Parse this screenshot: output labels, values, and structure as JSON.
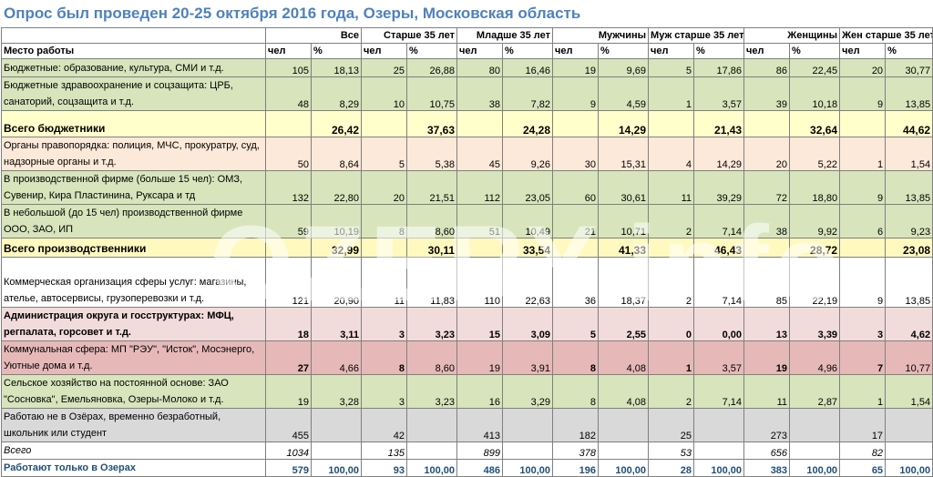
{
  "title": "Опрос был проведен 20-25 октября 2016 года, Озеры, Московская область",
  "watermark": "OZERY.info",
  "header": {
    "place_label": "Место работы",
    "groups": [
      "Все",
      "Старше 35 лет",
      "Младше 35 лет",
      "Мужчины",
      "Муж старше 35 лет",
      "Женщины",
      "Жен старше 35 лет"
    ],
    "unit_count": "чел",
    "unit_pct": "%"
  },
  "rows": [
    {
      "label": "Бюджетные: образование, культура, СМИ и т.д.",
      "v": [
        "105",
        "18,13",
        "25",
        "26,88",
        "80",
        "16,46",
        "19",
        "9,69",
        "5",
        "17,86",
        "86",
        "22,45",
        "20",
        "30,77"
      ]
    },
    {
      "label": "Бюджетные здравоохранение и соцзащита: ЦРБ, санаторий, соцзащита и т.д.",
      "v": [
        "48",
        "8,29",
        "10",
        "10,75",
        "38",
        "7,82",
        "9",
        "4,59",
        "1",
        "3,57",
        "39",
        "10,18",
        "9",
        "13,85"
      ]
    },
    {
      "label": "Всего бюджетники",
      "v": [
        "",
        "26,42",
        "",
        "37,63",
        "",
        "24,28",
        "",
        "14,29",
        "",
        "21,43",
        "",
        "32,64",
        "",
        "44,62"
      ]
    },
    {
      "label": "Органы правопорядка: полиция, МЧС, прокуратру, суд, надзорные органы и т.д.",
      "v": [
        "50",
        "8,64",
        "5",
        "5,38",
        "45",
        "9,26",
        "30",
        "15,31",
        "4",
        "14,29",
        "20",
        "5,22",
        "1",
        "1,54"
      ]
    },
    {
      "label": "В производственной фирме (больше 15 чел): ОМЗ, Сувенир, Кира Пластинина, Руксара и тд",
      "v": [
        "132",
        "22,80",
        "20",
        "21,51",
        "112",
        "23,05",
        "60",
        "30,61",
        "11",
        "39,29",
        "72",
        "18,80",
        "9",
        "13,85"
      ]
    },
    {
      "label": "В небольшой (до 15 чел) производственной фирме ООО, ЗАО, ИП",
      "v": [
        "59",
        "10,19",
        "8",
        "8,60",
        "51",
        "10,49",
        "21",
        "10,71",
        "2",
        "7,14",
        "38",
        "9,92",
        "6",
        "9,23"
      ]
    },
    {
      "label": "Всего производственники",
      "v": [
        "",
        "32,99",
        "",
        "30,11",
        "",
        "33,54",
        "",
        "41,33",
        "",
        "46,43",
        "",
        "28,72",
        "",
        "23,08"
      ]
    },
    {
      "label": "Коммерческая организация сферы услуг: магазины, ателье, автосервисы, грузоперевозки и т.д.",
      "v": [
        "121",
        "20,90",
        "11",
        "11,83",
        "110",
        "22,63",
        "36",
        "18,37",
        "2",
        "7,14",
        "85",
        "22,19",
        "9",
        "13,85"
      ]
    },
    {
      "label": "Администрация округа и госструктурах: МФЦ, регпалата, горсовет и т.д.",
      "v": [
        "18",
        "3,11",
        "3",
        "3,23",
        "15",
        "3,09",
        "5",
        "2,55",
        "0",
        "0,00",
        "13",
        "3,39",
        "3",
        "4,62"
      ]
    },
    {
      "label": "Коммунальная сфера: МП \"РЭУ\", \"Исток\", Мосэнерго, Уютные дома и т.д.",
      "v": [
        "27",
        "4,66",
        "8",
        "8,60",
        "19",
        "3,91",
        "8",
        "4,08",
        "1",
        "3,57",
        "19",
        "4,96",
        "7",
        "10,77"
      ]
    },
    {
      "label": "Сельское хозяйство на постоянной основе: ЗАО \"Сосновка\", Емельяновка, Озеры-Молоко и т.д.",
      "v": [
        "19",
        "3,28",
        "3",
        "3,23",
        "16",
        "3,29",
        "8",
        "4,08",
        "2",
        "7,14",
        "11",
        "2,87",
        "1",
        "1,54"
      ]
    },
    {
      "label": "Работаю не в Озёрах, временно безработный, школьник или студент",
      "v": [
        "455",
        "",
        "42",
        "",
        "413",
        "",
        "182",
        "",
        "25",
        "",
        "273",
        "",
        "17",
        ""
      ]
    },
    {
      "label": "Всего",
      "v": [
        "1034",
        "",
        "135",
        "",
        "899",
        "",
        "378",
        "",
        "53",
        "",
        "656",
        "",
        "82",
        ""
      ]
    },
    {
      "label": "Работают только в Озерах",
      "v": [
        "579",
        "100,00",
        "93",
        "100,00",
        "486",
        "100,00",
        "196",
        "100,00",
        "28",
        "100,00",
        "383",
        "100,00",
        "65",
        "100,00"
      ]
    }
  ]
}
